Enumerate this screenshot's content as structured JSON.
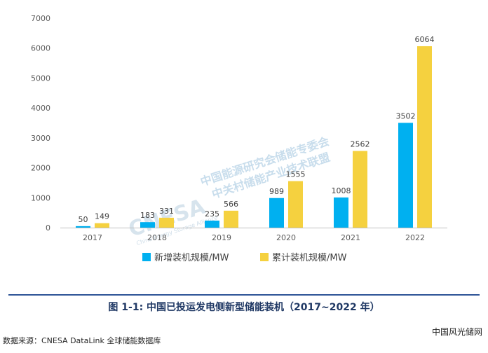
{
  "chart_data": {
    "type": "bar",
    "title": "",
    "xlabel": "",
    "ylabel": "",
    "ylim": [
      0,
      7000
    ],
    "yticks": [
      0,
      1000,
      2000,
      3000,
      4000,
      5000,
      6000,
      7000
    ],
    "grid": false,
    "legend_position": "bottom-center",
    "categories": [
      "2017",
      "2018",
      "2019",
      "2020",
      "2021",
      "2022"
    ],
    "series": [
      {
        "name": "新增装机规模/MW",
        "color": "#00b0f0",
        "values": [
          50,
          183,
          235,
          989,
          1008,
          3502
        ]
      },
      {
        "name": "累计装机规模/MW",
        "color": "#f5d13f",
        "values": [
          149,
          331,
          566,
          1555,
          2562,
          6064
        ]
      }
    ]
  },
  "watermark": {
    "line1": "中国能源研究会储能专委会",
    "line2": "中关村储能产业技术联盟",
    "logo": "CNESA",
    "english": "China Energy Storage Alliance"
  },
  "caption": "图 1-1: 中国已投运发电侧新型储能装机（2017~2022 年）",
  "source": "数据来源：CNESA DataLink 全球储能数据库",
  "site_mark": "中国风光储网"
}
